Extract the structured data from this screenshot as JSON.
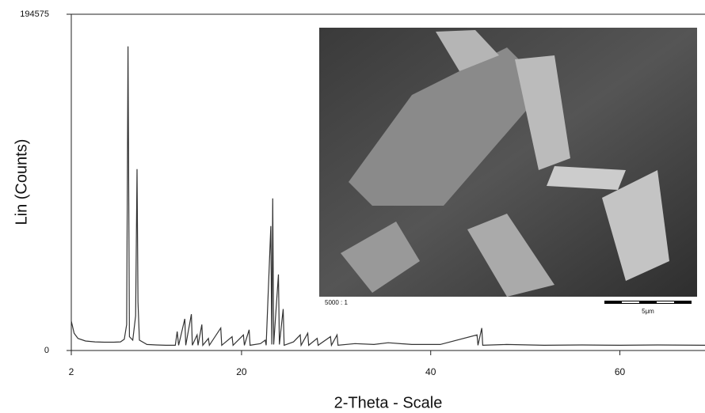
{
  "chart_data": {
    "type": "line",
    "xlabel": "2-Theta - Scale",
    "ylabel": "Lin (Counts)",
    "x": [
      2.0,
      2.3,
      2.7,
      3.5,
      4.5,
      5.5,
      6.5,
      7.2,
      7.6,
      7.85,
      8.0,
      8.15,
      8.5,
      8.8,
      8.95,
      9.05,
      9.2,
      10.0,
      11.0,
      12.0,
      13.0,
      13.2,
      13.35,
      14.0,
      14.1,
      14.7,
      14.8,
      15.3,
      15.4,
      15.8,
      15.9,
      16.5,
      16.6,
      17.8,
      17.9,
      19.0,
      19.1,
      20.2,
      20.3,
      20.8,
      20.9,
      22.0,
      22.5,
      22.6,
      23.1,
      23.2,
      23.3,
      23.4,
      23.9,
      24.0,
      24.4,
      24.5,
      25.5,
      26.2,
      26.3,
      27.0,
      27.1,
      28.0,
      28.1,
      29.4,
      29.5,
      30.1,
      30.2,
      32.0,
      34.0,
      35.5,
      38.0,
      41.0,
      44.9,
      45.0,
      45.4,
      45.5,
      48.0,
      52.0,
      56.0,
      60.0,
      64.0,
      69.0
    ],
    "values": [
      17000,
      10000,
      7000,
      5500,
      5000,
      4800,
      4800,
      5000,
      6500,
      15000,
      176000,
      8000,
      6000,
      20000,
      105000,
      28000,
      6000,
      3500,
      3200,
      3000,
      3000,
      11000,
      3000,
      18300,
      3000,
      21000,
      3000,
      9000,
      3000,
      15000,
      3000,
      7000,
      3000,
      13000,
      3000,
      8000,
      3000,
      9000,
      3000,
      12000,
      3000,
      4000,
      6000,
      3000,
      72000,
      3500,
      88000,
      3500,
      44000,
      3500,
      24000,
      3000,
      5000,
      9000,
      3000,
      10000,
      3000,
      7000,
      3000,
      8000,
      3000,
      9000,
      3000,
      4000,
      3500,
      4500,
      3500,
      3500,
      9000,
      3000,
      13000,
      3000,
      3500,
      3000,
      3200,
      3000,
      3200,
      3000
    ],
    "color": "#333333",
    "xlim": [
      2,
      69
    ],
    "xticks": [
      2,
      20,
      40,
      60
    ],
    "ylim": [
      0,
      194575
    ],
    "yticks": [
      0,
      194575
    ],
    "inset": {
      "magnification": "5000 : 1",
      "scale_bar": "5μm"
    }
  }
}
